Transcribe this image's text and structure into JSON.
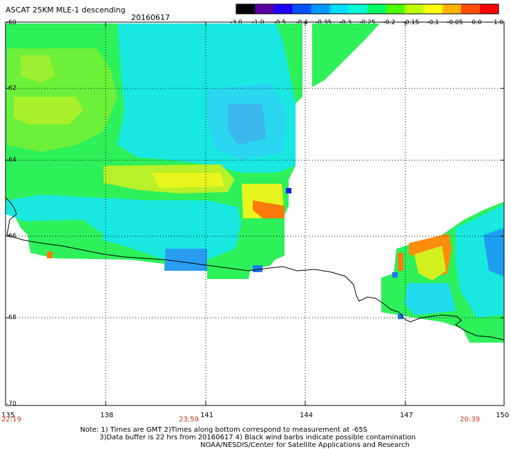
{
  "header": {
    "title": "ASCAT 25KM MLE-1 descending",
    "date": "20160617"
  },
  "colorbar": {
    "tick_labels": [
      "-3.0",
      "-1.0",
      "-0.5",
      "-0.4",
      "-0.35",
      "-0.3",
      "-0.25",
      "-0.2",
      "-0.15",
      "-0.1",
      "-0.05",
      "0.0",
      "1.0"
    ],
    "colors": [
      "#000000",
      "#5a00a0",
      "#1e00ff",
      "#0050ff",
      "#0096ff",
      "#00dcff",
      "#00ffd2",
      "#00ff64",
      "#50ff00",
      "#beff00",
      "#ffff00",
      "#ffb400",
      "#ff5000",
      "#ff0000"
    ]
  },
  "map": {
    "lon_labels": [
      "135",
      "138",
      "141",
      "144",
      "147",
      "150"
    ],
    "lat_labels": [
      "-60",
      "-62",
      "-64",
      "-66",
      "-68",
      "-70"
    ],
    "time_labels": [
      "22:19",
      "23:59",
      "20:39"
    ],
    "field_colors": {
      "green": "#2ef05a",
      "lightgreen": "#5cf02e",
      "yellowgreen": "#b4f02a",
      "yellow": "#e6f51e",
      "cyan": "#00f0e6",
      "lightcyan": "#3ce8c8",
      "aqua": "#1ee0f0",
      "teal": "#14c8e6",
      "blue": "#1e78f0",
      "orange": "#ff7a0a",
      "darkblue": "#2020e0"
    }
  },
  "notes": {
    "line1": "Note: 1) Times are GMT 2)Times along bottom correspond to measurement at -65S",
    "line2": "3)Data buffer is 22 hrs from 20160617 4) Black wind barbs indicate possible contamination",
    "line3": "NOAA/NESDIS/Center for Satellite Applications and Research"
  }
}
